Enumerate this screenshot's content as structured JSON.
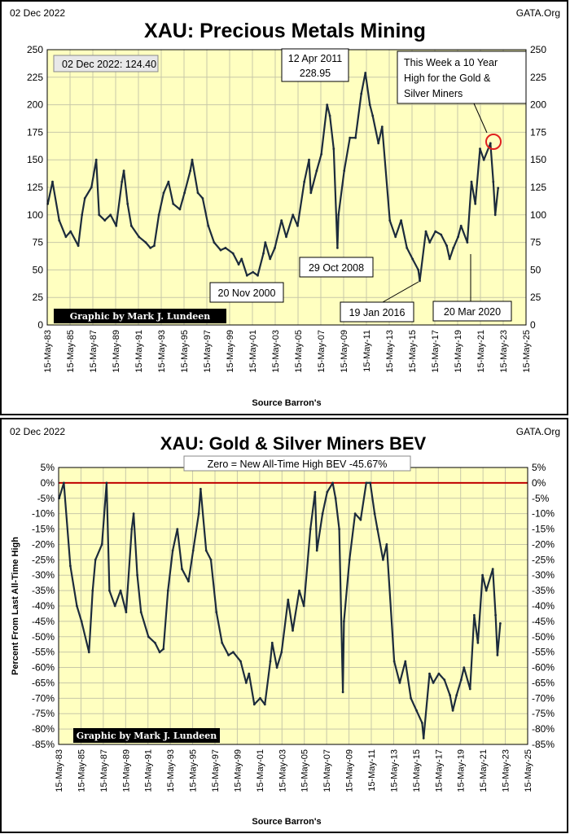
{
  "charts": {
    "xau": {
      "date_label": "02 Dec 2022",
      "source_label": "GATA.Org",
      "credit": "Graphic by Mark J. Lundeen",
      "xlabel": "Source Barron's"
    },
    "bev": {
      "date_label": "02 Dec 2022",
      "source_label": "GATA.Org",
      "credit": "Graphic by Mark J. Lundeen",
      "xlabel": "Source Barron's",
      "ylabel": "Percent From Last All-Time High",
      "zero_label": "Zero = New All-Time High BEV -45.67%"
    }
  },
  "colors": {
    "plot_bg": "#ffffc0",
    "grid": "#c8c8a8",
    "series": "#1c2b3c",
    "zero_line": "#c00000",
    "circle": "#e02020",
    "credit_bg": "#000000"
  },
  "chart_data": [
    {
      "type": "line",
      "title": "XAU: Precious Metals Mining",
      "xlabel": "Source Barron's",
      "ylabel": "",
      "ylim": [
        0,
        250
      ],
      "yticks": [
        0,
        25,
        50,
        75,
        100,
        125,
        150,
        175,
        200,
        225,
        250
      ],
      "xlim": [
        "1983-05-15",
        "2025-05-15"
      ],
      "xtick_labels": [
        "15-May-83",
        "15-May-85",
        "15-May-87",
        "15-May-89",
        "15-May-91",
        "15-May-93",
        "15-May-95",
        "15-May-97",
        "15-May-99",
        "15-May-01",
        "15-May-03",
        "15-May-05",
        "15-May-07",
        "15-May-09",
        "15-May-11",
        "15-May-13",
        "15-May-15",
        "15-May-17",
        "15-May-19",
        "15-May-21",
        "15-May-23",
        "15-May-25"
      ],
      "grid": true,
      "annotations": [
        {
          "text": "02 Dec 2022:  124.40"
        },
        {
          "text": "12 Apr 2011",
          "text2": "228.95"
        },
        {
          "text": "This Week a 10 Year",
          "text2": "High for the Gold &",
          "text3": "Silver Miners"
        },
        {
          "text": "20 Nov 2000"
        },
        {
          "text": "29 Oct 2008"
        },
        {
          "text": "19 Jan 2016"
        },
        {
          "text": "20 Mar 2020"
        }
      ],
      "series": [
        {
          "x": [
            "1983-06-01",
            "1983-11-01",
            "1984-06-01",
            "1985-01-01",
            "1985-06-01",
            "1986-02-01",
            "1986-06-01",
            "1986-09-01",
            "1987-04-01",
            "1987-09-01",
            "1987-12-01",
            "1988-06-01",
            "1988-12-01",
            "1989-06-01",
            "1989-12-01",
            "1990-02-01",
            "1990-06-01",
            "1990-10-01",
            "1991-06-01",
            "1992-01-01",
            "1992-06-01",
            "1992-10-01",
            "1993-03-01",
            "1993-08-01",
            "1994-01-01",
            "1994-06-01",
            "1995-01-01",
            "1995-06-01",
            "1995-12-01",
            "1996-02-01",
            "1996-08-01",
            "1997-01-01",
            "1997-07-01",
            "1998-01-01",
            "1998-08-01",
            "1999-01-01",
            "1999-09-01",
            "2000-03-01",
            "2000-06-01",
            "2000-11-20",
            "2001-06-01",
            "2001-11-01",
            "2002-05-01",
            "2002-07-01",
            "2002-12-01",
            "2003-05-01",
            "2003-12-01",
            "2004-05-01",
            "2004-12-01",
            "2005-05-01",
            "2005-12-01",
            "2006-05-01",
            "2006-07-01",
            "2007-01-01",
            "2007-06-01",
            "2007-12-01",
            "2008-03-01",
            "2008-07-01",
            "2008-10-29",
            "2008-12-01",
            "2009-06-01",
            "2009-12-01",
            "2010-06-01",
            "2010-12-01",
            "2011-04-12",
            "2011-09-01",
            "2011-12-01",
            "2012-06-01",
            "2012-10-01",
            "2013-06-01",
            "2013-12-01",
            "2014-06-01",
            "2014-12-01",
            "2015-06-01",
            "2015-12-01",
            "2016-01-19",
            "2016-08-01",
            "2016-12-01",
            "2017-06-01",
            "2017-12-01",
            "2018-06-01",
            "2018-09-01",
            "2019-01-01",
            "2019-06-01",
            "2019-09-01",
            "2020-03-20",
            "2020-08-01",
            "2020-12-01",
            "2021-05-01",
            "2021-09-01",
            "2022-04-01",
            "2022-07-01",
            "2022-09-01",
            "2022-12-02"
          ],
          "values": [
            110,
            130,
            95,
            80,
            85,
            72,
            100,
            115,
            125,
            150,
            100,
            95,
            100,
            90,
            130,
            140,
            110,
            90,
            80,
            75,
            70,
            72,
            100,
            120,
            130,
            110,
            105,
            120,
            140,
            150,
            120,
            115,
            90,
            75,
            68,
            70,
            65,
            55,
            60,
            45,
            48,
            45,
            65,
            75,
            60,
            70,
            95,
            80,
            100,
            90,
            130,
            150,
            120,
            140,
            155,
            200,
            190,
            160,
            70,
            100,
            140,
            170,
            170,
            210,
            228.95,
            200,
            190,
            165,
            180,
            95,
            80,
            95,
            70,
            60,
            50,
            40,
            85,
            75,
            85,
            82,
            72,
            60,
            70,
            80,
            90,
            75,
            130,
            110,
            160,
            150,
            165,
            130,
            100,
            124.4
          ]
        }
      ]
    },
    {
      "type": "line",
      "title": "XAU: Gold & Silver Miners BEV",
      "xlabel": "Source Barron's",
      "ylabel": "Percent From Last All-Time High",
      "ylim": [
        -85,
        5
      ],
      "yticks": [
        5,
        0,
        -5,
        -10,
        -15,
        -20,
        -25,
        -30,
        -35,
        -40,
        -45,
        -50,
        -55,
        -60,
        -65,
        -70,
        -75,
        -80,
        -85
      ],
      "xlim": [
        "1983-05-15",
        "2025-05-15"
      ],
      "xtick_labels": [
        "15-May-83",
        "15-May-85",
        "15-May-87",
        "15-May-89",
        "15-May-91",
        "15-May-93",
        "15-May-95",
        "15-May-97",
        "15-May-99",
        "15-May-01",
        "15-May-03",
        "15-May-05",
        "15-May-07",
        "15-May-09",
        "15-May-11",
        "15-May-13",
        "15-May-15",
        "15-May-17",
        "15-May-19",
        "15-May-21",
        "15-May-23",
        "15-May-25"
      ],
      "grid": true,
      "annotations": [
        {
          "text": "Zero = New All-Time High BEV -45.67%"
        }
      ],
      "series": [
        {
          "x": [
            "1983-06-01",
            "1983-11-01",
            "1984-06-01",
            "1985-01-01",
            "1985-06-01",
            "1986-02-01",
            "1986-06-01",
            "1986-09-01",
            "1987-04-01",
            "1987-09-01",
            "1987-12-01",
            "1988-06-01",
            "1988-12-01",
            "1989-06-01",
            "1989-12-01",
            "1990-02-01",
            "1990-06-01",
            "1990-10-01",
            "1991-06-01",
            "1992-01-01",
            "1992-06-01",
            "1992-10-01",
            "1993-03-01",
            "1993-08-01",
            "1994-01-01",
            "1994-06-01",
            "1995-01-01",
            "1995-06-01",
            "1995-12-01",
            "1996-02-01",
            "1996-08-01",
            "1997-01-01",
            "1997-07-01",
            "1998-01-01",
            "1998-08-01",
            "1999-01-01",
            "1999-09-01",
            "2000-03-01",
            "2000-06-01",
            "2000-11-20",
            "2001-06-01",
            "2001-11-01",
            "2002-05-01",
            "2002-07-01",
            "2002-12-01",
            "2003-05-01",
            "2003-12-01",
            "2004-05-01",
            "2004-12-01",
            "2005-05-01",
            "2005-12-01",
            "2006-05-01",
            "2006-07-01",
            "2007-01-01",
            "2007-06-01",
            "2007-12-01",
            "2008-03-01",
            "2008-07-01",
            "2008-10-29",
            "2008-12-01",
            "2009-06-01",
            "2009-12-01",
            "2010-06-01",
            "2010-12-01",
            "2011-04-12",
            "2011-09-01",
            "2011-12-01",
            "2012-06-01",
            "2012-10-01",
            "2013-06-01",
            "2013-12-01",
            "2014-06-01",
            "2014-12-01",
            "2015-06-01",
            "2015-12-01",
            "2016-01-19",
            "2016-08-01",
            "2016-12-01",
            "2017-06-01",
            "2017-12-01",
            "2018-06-01",
            "2018-09-01",
            "2019-01-01",
            "2019-06-01",
            "2019-09-01",
            "2020-03-20",
            "2020-08-01",
            "2020-12-01",
            "2021-05-01",
            "2021-09-01",
            "2022-04-01",
            "2022-07-01",
            "2022-09-01",
            "2022-12-02"
          ],
          "values": [
            -5,
            0,
            -27,
            -40,
            -45,
            -55,
            -35,
            -25,
            -20,
            0,
            -35,
            -40,
            -35,
            -42,
            -15,
            -10,
            -30,
            -42,
            -50,
            -52,
            -55,
            -54,
            -35,
            -22,
            -15,
            -28,
            -32,
            -22,
            -10,
            -2,
            -22,
            -25,
            -42,
            -52,
            -56,
            -55,
            -58,
            -65,
            -62,
            -72,
            -70,
            -72,
            -58,
            -52,
            -60,
            -55,
            -38,
            -48,
            -35,
            -40,
            -15,
            -3,
            -22,
            -10,
            -3,
            0,
            -5,
            -15,
            -68,
            -45,
            -25,
            -10,
            -12,
            0,
            0,
            -10,
            -15,
            -25,
            -20,
            -58,
            -65,
            -58,
            -70,
            -74,
            -78,
            -83,
            -62,
            -65,
            -62,
            -64,
            -69,
            -74,
            -69,
            -64,
            -60,
            -67,
            -43,
            -52,
            -30,
            -35,
            -28,
            -43,
            -56,
            -45.67
          ]
        }
      ]
    }
  ]
}
